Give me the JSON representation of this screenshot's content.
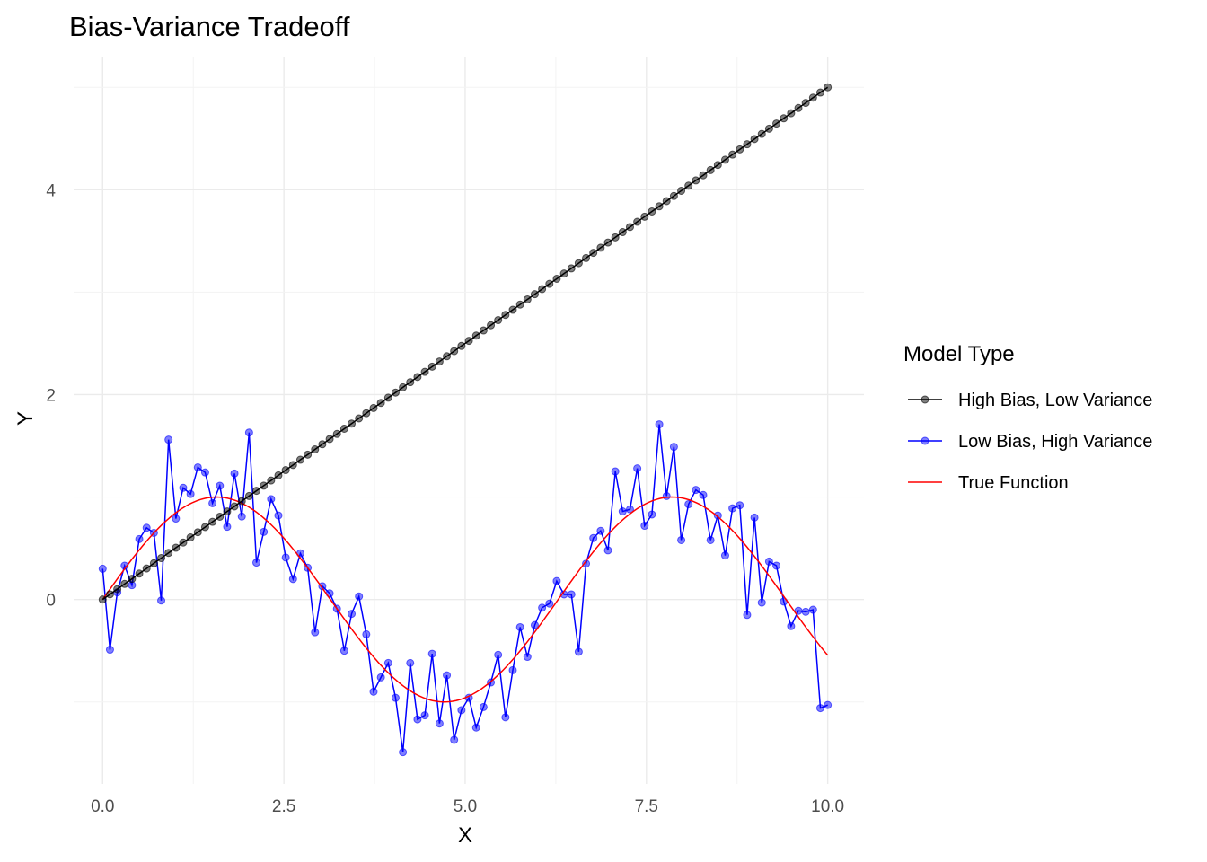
{
  "chart_data": {
    "type": "line",
    "title": "Bias-Variance Tradeoff",
    "xlabel": "X",
    "ylabel": "Y",
    "xlim": [
      -0.4,
      10.5
    ],
    "ylim": [
      -1.8,
      5.3
    ],
    "x_ticks": [
      0,
      2.5,
      5,
      7.5,
      10
    ],
    "x_tick_labels": [
      "0.0",
      "2.5",
      "5.0",
      "7.5",
      "10.0"
    ],
    "y_ticks": [
      0,
      2,
      4
    ],
    "y_tick_labels": [
      "0",
      "2",
      "4"
    ],
    "grid": true,
    "legend": {
      "title": "Model Type",
      "position": "right"
    },
    "series": [
      {
        "name": "High Bias, Low Variance",
        "color": "#000000",
        "marker": "circle",
        "x": [
          0.0,
          0.101,
          0.202,
          0.303,
          0.404,
          0.505,
          0.606,
          0.707,
          0.808,
          0.909,
          1.01,
          1.111,
          1.212,
          1.313,
          1.414,
          1.515,
          1.616,
          1.717,
          1.818,
          1.919,
          2.02,
          2.121,
          2.222,
          2.323,
          2.424,
          2.525,
          2.626,
          2.727,
          2.828,
          2.929,
          3.03,
          3.131,
          3.232,
          3.333,
          3.434,
          3.535,
          3.636,
          3.737,
          3.838,
          3.939,
          4.04,
          4.141,
          4.242,
          4.343,
          4.444,
          4.545,
          4.646,
          4.747,
          4.848,
          4.949,
          5.051,
          5.152,
          5.253,
          5.354,
          5.455,
          5.556,
          5.657,
          5.758,
          5.859,
          5.96,
          6.061,
          6.162,
          6.263,
          6.364,
          6.465,
          6.566,
          6.667,
          6.768,
          6.869,
          6.97,
          7.071,
          7.172,
          7.273,
          7.374,
          7.475,
          7.576,
          7.677,
          7.778,
          7.879,
          7.98,
          8.081,
          8.182,
          8.283,
          8.384,
          8.485,
          8.586,
          8.687,
          8.788,
          8.889,
          8.99,
          9.091,
          9.192,
          9.293,
          9.394,
          9.495,
          9.596,
          9.697,
          9.798,
          9.899,
          10.0
        ],
        "y": [
          0.0,
          0.051,
          0.101,
          0.152,
          0.202,
          0.253,
          0.303,
          0.354,
          0.404,
          0.455,
          0.505,
          0.556,
          0.606,
          0.657,
          0.707,
          0.758,
          0.808,
          0.859,
          0.909,
          0.96,
          1.01,
          1.061,
          1.111,
          1.162,
          1.212,
          1.263,
          1.313,
          1.364,
          1.414,
          1.465,
          1.515,
          1.566,
          1.616,
          1.667,
          1.717,
          1.768,
          1.818,
          1.869,
          1.919,
          1.97,
          2.02,
          2.071,
          2.121,
          2.172,
          2.222,
          2.273,
          2.323,
          2.374,
          2.424,
          2.475,
          2.525,
          2.576,
          2.626,
          2.677,
          2.727,
          2.778,
          2.828,
          2.879,
          2.929,
          2.98,
          3.03,
          3.081,
          3.131,
          3.182,
          3.232,
          3.283,
          3.333,
          3.384,
          3.434,
          3.485,
          3.535,
          3.586,
          3.636,
          3.687,
          3.737,
          3.788,
          3.838,
          3.889,
          3.939,
          3.99,
          4.04,
          4.091,
          4.141,
          4.192,
          4.242,
          4.293,
          4.343,
          4.394,
          4.444,
          4.495,
          4.545,
          4.596,
          4.646,
          4.697,
          4.747,
          4.798,
          4.848,
          4.899,
          4.949,
          5.0
        ]
      },
      {
        "name": "Low Bias, High Variance",
        "color": "#0000ff",
        "marker": "circle",
        "x": [
          0.0,
          0.101,
          0.202,
          0.303,
          0.404,
          0.505,
          0.606,
          0.707,
          0.808,
          0.909,
          1.01,
          1.111,
          1.212,
          1.313,
          1.414,
          1.515,
          1.616,
          1.717,
          1.818,
          1.919,
          2.02,
          2.121,
          2.222,
          2.323,
          2.424,
          2.525,
          2.626,
          2.727,
          2.828,
          2.929,
          3.03,
          3.131,
          3.232,
          3.333,
          3.434,
          3.535,
          3.636,
          3.737,
          3.838,
          3.939,
          4.04,
          4.141,
          4.242,
          4.343,
          4.444,
          4.545,
          4.646,
          4.747,
          4.848,
          4.949,
          5.051,
          5.152,
          5.253,
          5.354,
          5.455,
          5.556,
          5.657,
          5.758,
          5.859,
          5.96,
          6.061,
          6.162,
          6.263,
          6.364,
          6.465,
          6.566,
          6.667,
          6.768,
          6.869,
          6.97,
          7.071,
          7.172,
          7.273,
          7.374,
          7.475,
          7.576,
          7.677,
          7.778,
          7.879,
          7.98,
          8.081,
          8.182,
          8.283,
          8.384,
          8.485,
          8.586,
          8.687,
          8.788,
          8.889,
          8.99,
          9.091,
          9.192,
          9.293,
          9.394,
          9.495,
          9.596,
          9.697,
          9.798,
          9.899,
          10.0
        ],
        "y": [
          0.3,
          -0.49,
          0.07,
          0.33,
          0.14,
          0.59,
          0.7,
          0.65,
          -0.01,
          1.56,
          0.79,
          1.09,
          1.03,
          1.29,
          1.24,
          0.94,
          1.11,
          0.71,
          1.23,
          0.81,
          1.63,
          0.36,
          0.66,
          0.98,
          0.82,
          0.41,
          0.2,
          0.45,
          0.31,
          -0.32,
          0.13,
          0.06,
          -0.09,
          -0.5,
          -0.14,
          0.03,
          -0.34,
          -0.9,
          -0.76,
          -0.62,
          -0.96,
          -1.49,
          -0.62,
          -1.17,
          -1.13,
          -0.53,
          -1.21,
          -0.74,
          -1.37,
          -1.08,
          -0.96,
          -1.25,
          -1.05,
          -0.81,
          -0.54,
          -1.15,
          -0.69,
          -0.27,
          -0.56,
          -0.25,
          -0.08,
          -0.04,
          0.18,
          0.05,
          0.05,
          -0.51,
          0.35,
          0.6,
          0.67,
          0.48,
          1.25,
          0.86,
          0.88,
          1.28,
          0.72,
          0.83,
          1.71,
          1.01,
          1.49,
          0.58,
          0.93,
          1.07,
          1.02,
          0.58,
          0.82,
          0.43,
          0.89,
          0.92,
          -0.15,
          0.8,
          -0.03,
          0.37,
          0.33,
          -0.02,
          -0.26,
          -0.11,
          -0.12,
          -0.1,
          -1.06,
          -1.03
        ]
      },
      {
        "name": "True Function",
        "color": "#ff0000",
        "marker": "none",
        "function": "sin(x)",
        "x_range": [
          0,
          10
        ]
      }
    ]
  }
}
